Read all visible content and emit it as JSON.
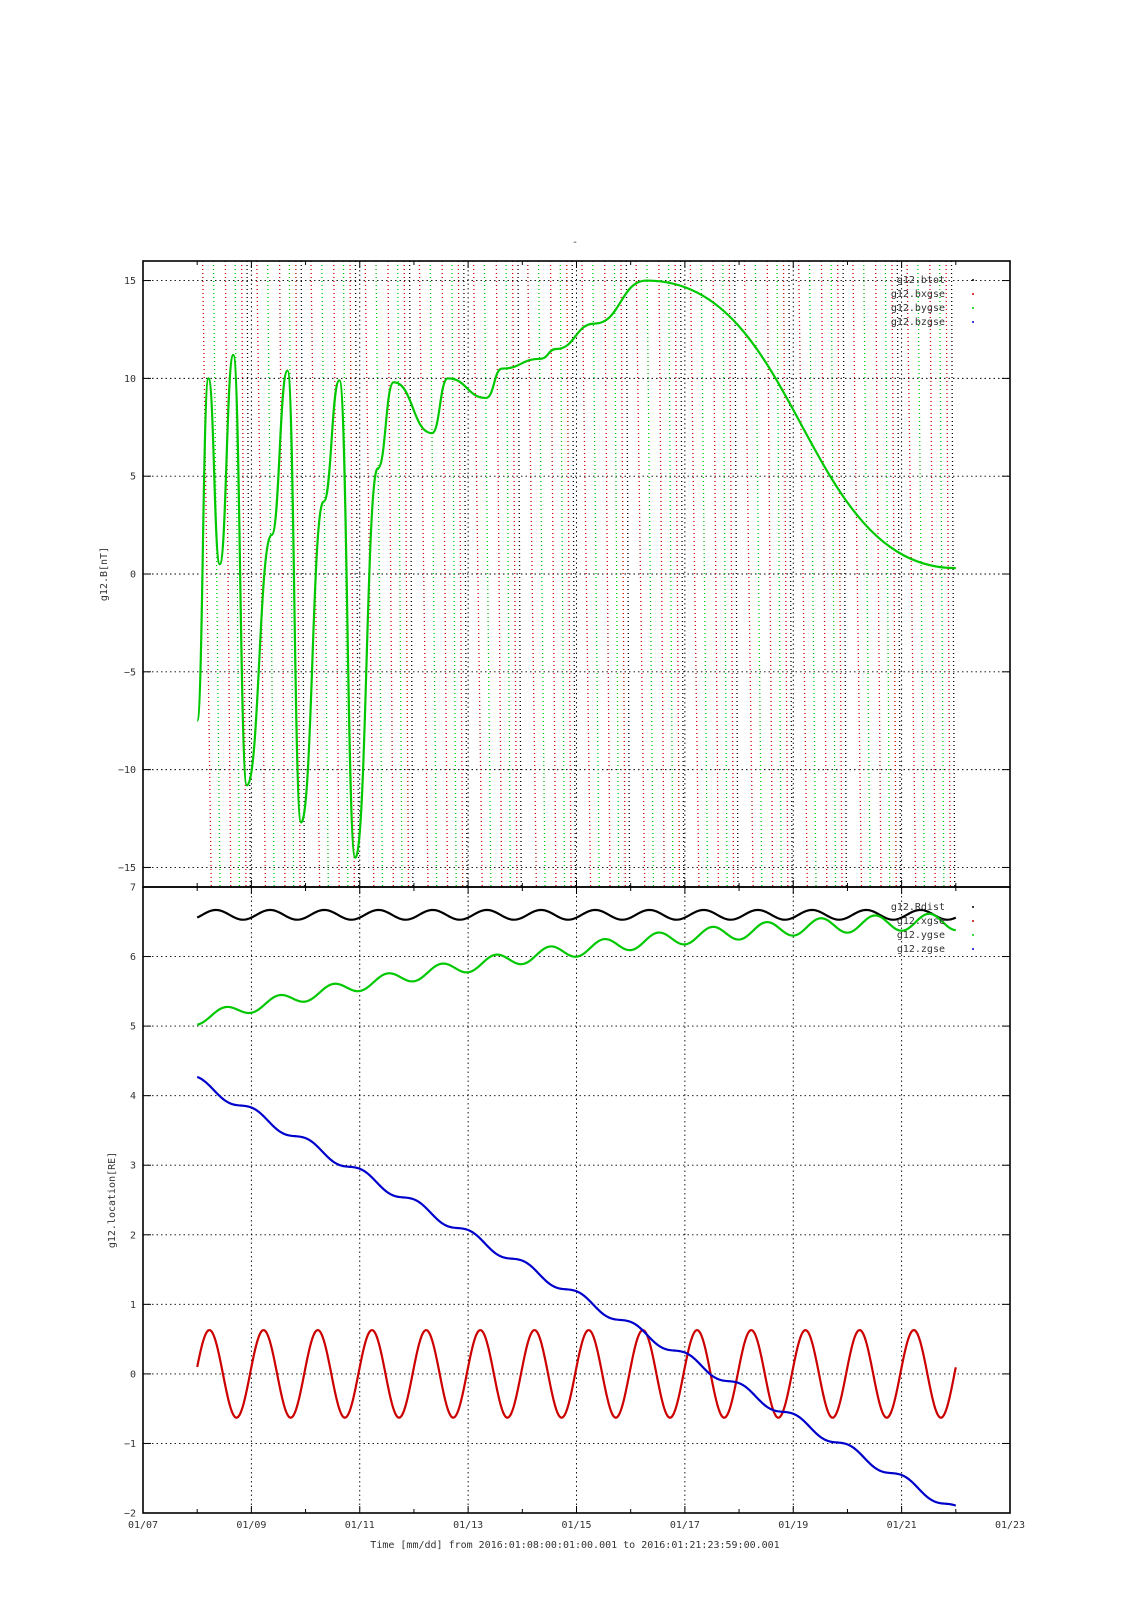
{
  "page": {
    "title": "-"
  },
  "colors": {
    "black": "#000000",
    "red": "#cc0000",
    "green": "#00c800",
    "blue": "#0000cc",
    "grid": "#000000"
  },
  "footer": {
    "xlabel": "Time [mm/dd]  from 2016:01:08:00:01:00.001  to  2016:01:21:23:59:00.001"
  },
  "chart_data": [
    {
      "type": "line",
      "title": "-",
      "ylabel": "g12.B[nT]",
      "ylim": [
        -16,
        16
      ],
      "yticks": [
        -15,
        -10,
        -5,
        0,
        5,
        10,
        15
      ],
      "xlim": [
        "01/07",
        "01/23"
      ],
      "x_axis_labels_shown": false,
      "grid": true,
      "legend_position": "top-right",
      "series": [
        {
          "name": "g12.btot",
          "color": "#000000",
          "style": "dots"
        },
        {
          "name": "g12.bxgse",
          "color": "#cc0000",
          "style": "dots"
        },
        {
          "name": "g12.bygse",
          "color": "#00c800",
          "style": "dots"
        },
        {
          "name": "g12.bzgse",
          "color": "#0000cc",
          "style": "dots"
        }
      ],
      "visible_bygse_points": [
        [
          "01/08 00:01",
          -7.5
        ],
        [
          "01/08 05:00",
          10.0
        ],
        [
          "01/08 10:00",
          0.5
        ],
        [
          "01/08 16:00",
          11.2
        ],
        [
          "01/08 22:00",
          -10.8
        ],
        [
          "01/09 09:00",
          2.0
        ],
        [
          "01/09 16:00",
          10.4
        ],
        [
          "01/09 22:00",
          -12.7
        ],
        [
          "01/10 08:00",
          3.7
        ],
        [
          "01/10 15:00",
          9.9
        ],
        [
          "01/10 22:00",
          -14.5
        ],
        [
          "01/11 08:00",
          5.4
        ],
        [
          "01/11 15:00",
          9.8
        ],
        [
          "01/12 08:00",
          7.2
        ],
        [
          "01/12 15:00",
          10.0
        ],
        [
          "01/13 08:00",
          9.0
        ],
        [
          "01/13 15:00",
          10.5
        ],
        [
          "01/14 08:00",
          11.0
        ],
        [
          "01/14 15:00",
          11.5
        ],
        [
          "01/15 08:00",
          12.8
        ],
        [
          "01/16 07:00",
          15.0
        ],
        [
          "01/21 23:59",
          0.3
        ]
      ]
    },
    {
      "type": "line",
      "ylabel": "g12.location[RE]",
      "ylim": [
        -2,
        7
      ],
      "yticks": [
        -2,
        -1,
        0,
        1,
        2,
        3,
        4,
        5,
        6,
        7
      ],
      "xlim": [
        "01/07",
        "01/23"
      ],
      "xticks": [
        "01/07",
        "01/09",
        "01/11",
        "01/13",
        "01/15",
        "01/17",
        "01/19",
        "01/21",
        "01/23"
      ],
      "grid": true,
      "legend_position": "top-right",
      "series": [
        {
          "name": "g12.Rdist",
          "color": "#000000",
          "start": 6.6,
          "mean": 6.6,
          "amplitude": 0.07
        },
        {
          "name": "g12.xgse",
          "color": "#cc0000",
          "start": 0.1,
          "end": -0.35,
          "mean": 0.0,
          "amplitude": 0.63
        },
        {
          "name": "g12.ygse",
          "color": "#00c800",
          "start": 5.0,
          "end": 6.35,
          "mean_start": 5.1,
          "mean_end": 6.5,
          "amplitude_start": 0.08,
          "amplitude_end": 0.12
        },
        {
          "name": "g12.zgse",
          "color": "#0000cc",
          "start": 4.27,
          "end": -1.95,
          "amplitude": 0.06
        }
      ]
    }
  ]
}
